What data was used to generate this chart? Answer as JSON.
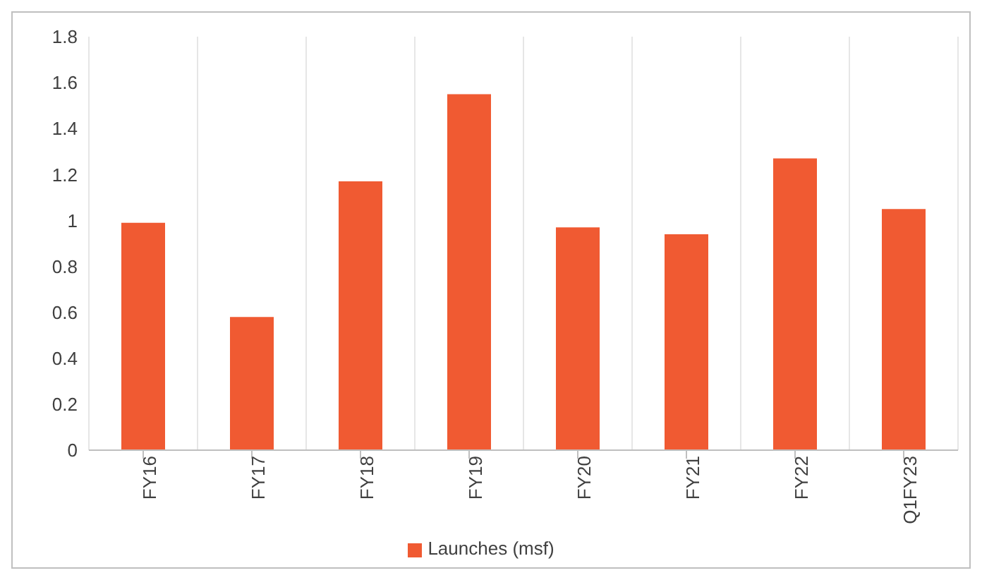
{
  "chart_data": {
    "type": "bar",
    "categories": [
      "FY16",
      "FY17",
      "FY18",
      "FY19",
      "FY20",
      "FY21",
      "FY22",
      "Q1FY23"
    ],
    "series": [
      {
        "name": "Launches (msf)",
        "color": "#f05a32",
        "values": [
          0.99,
          0.58,
          1.17,
          1.55,
          0.97,
          0.94,
          1.27,
          1.05
        ]
      }
    ],
    "ylim": [
      0,
      1.8
    ],
    "yticks": [
      0,
      0.2,
      0.4,
      0.6,
      0.8,
      1,
      1.2,
      1.4,
      1.6,
      1.8
    ],
    "grid": "x",
    "legend": "bottom"
  }
}
